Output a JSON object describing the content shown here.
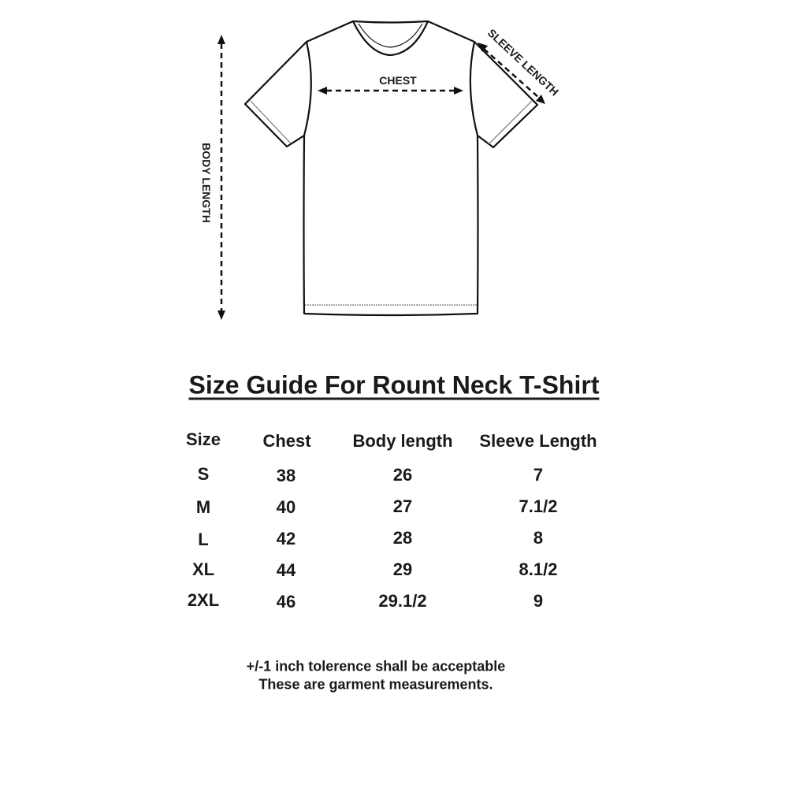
{
  "diagram": {
    "labels": {
      "chest": "CHEST",
      "body_length": "BODY LENGTH",
      "sleeve_length": "SLEEVE LENGTH"
    }
  },
  "title": "Size Guide For Rount Neck T-Shirt",
  "table": {
    "headers": [
      "Size",
      "Chest",
      "Body length",
      "Sleeve Length"
    ],
    "rows": [
      [
        "S",
        "38",
        "26",
        "7"
      ],
      [
        "M",
        "40",
        "27",
        "7.1/2"
      ],
      [
        "L",
        "42",
        "28",
        "8"
      ],
      [
        "XL",
        "44",
        "29",
        "8.1/2"
      ],
      [
        "2XL",
        "46",
        "29.1/2",
        "9"
      ]
    ]
  },
  "notes": [
    "+/-1 inch tolerence shall be acceptable",
    "These are garment measurements."
  ]
}
